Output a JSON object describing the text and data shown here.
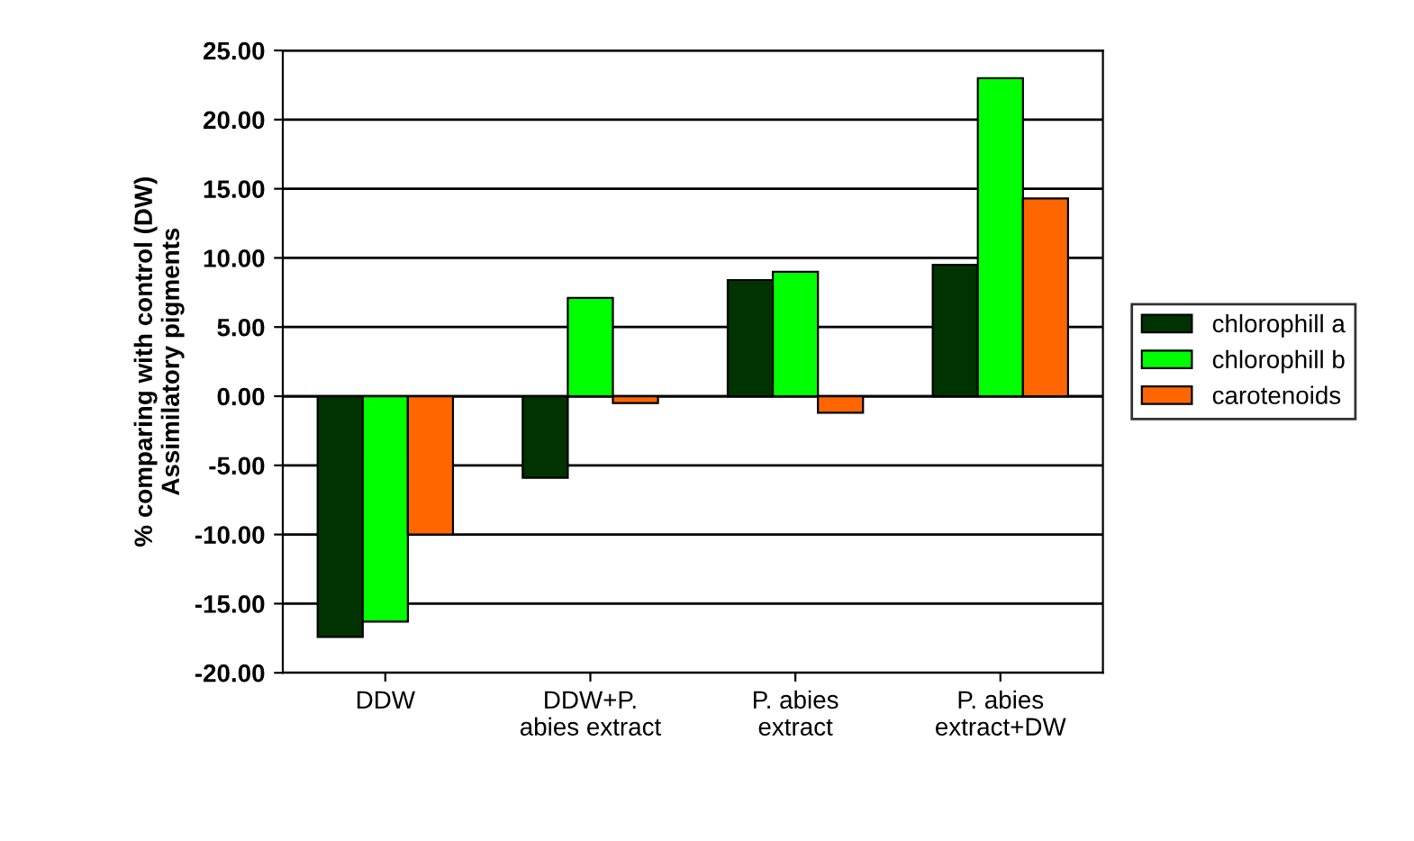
{
  "chart_data": {
    "type": "bar",
    "ylabel": "% comparing with control (DW)\nAssimilatory pigments",
    "categories": [
      "DDW",
      "DDW+P.\nabies extract",
      "P. abies\nextract",
      "P. abies\nextract+DW"
    ],
    "series": [
      {
        "name": "chlorophill a",
        "color": "#003300",
        "values": [
          -17.4,
          -5.9,
          8.4,
          9.5
        ]
      },
      {
        "name": "chlorophill b",
        "color": "#00ff00",
        "values": [
          -16.3,
          7.1,
          9.0,
          23.0
        ]
      },
      {
        "name": "carotenoids",
        "color": "#ff6600",
        "values": [
          -10.0,
          -0.5,
          -1.2,
          14.3
        ]
      }
    ],
    "ylim": [
      -20,
      25
    ],
    "yticks": [
      {
        "value": -20,
        "label": "-20.00"
      },
      {
        "value": -15,
        "label": "-15.00"
      },
      {
        "value": -10,
        "label": "-10.00"
      },
      {
        "value": -5,
        "label": "-5.00"
      },
      {
        "value": 0,
        "label": "0.00"
      },
      {
        "value": 5,
        "label": "5.00"
      },
      {
        "value": 10,
        "label": "10.00"
      },
      {
        "value": 15,
        "label": "15.00"
      },
      {
        "value": 20,
        "label": "20.00"
      },
      {
        "value": 25,
        "label": "25.00"
      }
    ],
    "grid": "y",
    "legend": "right"
  }
}
